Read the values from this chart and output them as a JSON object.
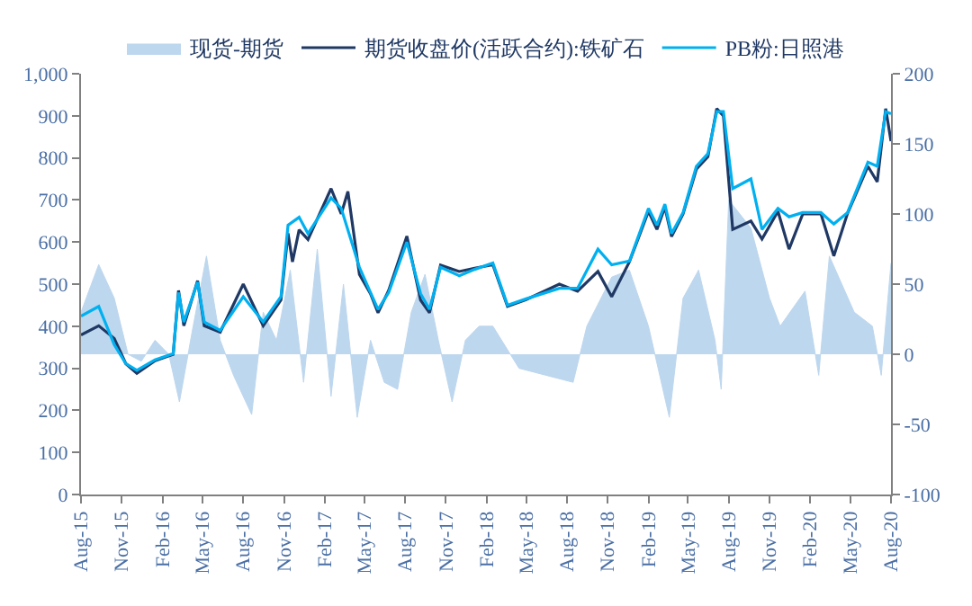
{
  "chart_data": {
    "type": "line",
    "legend": "top",
    "xlim": [
      "2015-08-01",
      "2020-08-01"
    ],
    "xticks": [
      {
        "value": "2015-08-01",
        "label": "Aug-15"
      },
      {
        "value": "2015-11-01",
        "label": "Nov-15"
      },
      {
        "value": "2016-02-01",
        "label": "Feb-16"
      },
      {
        "value": "2016-05-01",
        "label": "May-16"
      },
      {
        "value": "2016-08-01",
        "label": "Aug-16"
      },
      {
        "value": "2016-11-01",
        "label": "Nov-16"
      },
      {
        "value": "2017-02-01",
        "label": "Feb-17"
      },
      {
        "value": "2017-05-01",
        "label": "May-17"
      },
      {
        "value": "2017-08-01",
        "label": "Aug-17"
      },
      {
        "value": "2017-11-01",
        "label": "Nov-17"
      },
      {
        "value": "2018-02-01",
        "label": "Feb-18"
      },
      {
        "value": "2018-05-01",
        "label": "May-18"
      },
      {
        "value": "2018-08-01",
        "label": "Aug-18"
      },
      {
        "value": "2018-11-01",
        "label": "Nov-18"
      },
      {
        "value": "2019-02-01",
        "label": "Feb-19"
      },
      {
        "value": "2019-05-01",
        "label": "May-19"
      },
      {
        "value": "2019-08-01",
        "label": "Aug-19"
      },
      {
        "value": "2019-11-01",
        "label": "Nov-19"
      },
      {
        "value": "2020-02-01",
        "label": "Feb-20"
      },
      {
        "value": "2020-05-01",
        "label": "May-20"
      },
      {
        "value": "2020-08-01",
        "label": "Aug-20"
      }
    ],
    "ylim": [
      0,
      1000
    ],
    "yticks": [
      0,
      100,
      200,
      300,
      400,
      500,
      600,
      700,
      800,
      900,
      {
        "value": 1000,
        "label": "1,000"
      }
    ],
    "y2lim": [
      -100,
      200
    ],
    "y2ticks": [
      -100,
      -50,
      0,
      50,
      100,
      150,
      200
    ],
    "series": [
      {
        "name": "现货-期货",
        "type": "area",
        "axis": "y2",
        "color": "#bdd7ee",
        "x": [
          "2015-08-01",
          "2015-09-10",
          "2015-10-15",
          "2015-11-15",
          "2015-12-15",
          "2016-01-15",
          "2016-02-15",
          "2016-03-10",
          "2016-04-10",
          "2016-05-10",
          "2016-06-10",
          "2016-07-10",
          "2016-08-20",
          "2016-09-15",
          "2016-10-15",
          "2016-11-15",
          "2016-12-15",
          "2017-01-15",
          "2017-02-15",
          "2017-03-15",
          "2017-04-15",
          "2017-05-15",
          "2017-06-15",
          "2017-07-15",
          "2017-08-15",
          "2017-09-15",
          "2017-10-15",
          "2017-11-15",
          "2017-12-15",
          "2018-01-15",
          "2018-02-15",
          "2018-04-15",
          "2018-06-15",
          "2018-08-15",
          "2018-09-15",
          "2018-11-10",
          "2018-12-20",
          "2019-02-01",
          "2019-03-20",
          "2019-04-20",
          "2019-05-25",
          "2019-07-01",
          "2019-07-15",
          "2019-08-01",
          "2019-09-20",
          "2019-11-01",
          "2019-11-25",
          "2020-01-20",
          "2020-02-20",
          "2020-03-15",
          "2020-05-10",
          "2020-06-20",
          "2020-07-10",
          "2020-08-01"
        ],
        "values": [
          30,
          64,
          40,
          0,
          -5,
          10,
          0,
          -34,
          20,
          70,
          10,
          -15,
          -43,
          30,
          10,
          60,
          -20,
          75,
          -30,
          50,
          -45,
          10,
          -20,
          -25,
          30,
          57,
          10,
          -34,
          10,
          20,
          20,
          -10,
          -15,
          -20,
          20,
          55,
          60,
          20,
          -45,
          40,
          60,
          10,
          -25,
          110,
          90,
          40,
          20,
          45,
          -15,
          70,
          30,
          20,
          -15,
          65
        ]
      },
      {
        "name": "期货收盘价(活跃合约):铁矿石",
        "color": "#1f3864",
        "x": [
          "2015-08-01",
          "2015-09-10",
          "2015-10-15",
          "2015-11-10",
          "2015-12-05",
          "2016-01-15",
          "2016-02-25",
          "2016-03-08",
          "2016-03-20",
          "2016-04-20",
          "2016-05-05",
          "2016-06-10",
          "2016-08-01",
          "2016-09-15",
          "2016-10-25",
          "2016-11-10",
          "2016-11-20",
          "2016-12-05",
          "2016-12-25",
          "2017-02-15",
          "2017-03-10",
          "2017-03-25",
          "2017-04-20",
          "2017-05-15",
          "2017-06-01",
          "2017-06-25",
          "2017-08-05",
          "2017-09-05",
          "2017-09-25",
          "2017-10-20",
          "2017-12-01",
          "2018-01-05",
          "2018-02-15",
          "2018-03-20",
          "2018-05-01",
          "2018-07-15",
          "2018-08-25",
          "2018-10-10",
          "2018-11-10",
          "2018-12-20",
          "2019-02-01",
          "2019-02-20",
          "2019-03-10",
          "2019-03-25",
          "2019-04-20",
          "2019-05-20",
          "2019-06-15",
          "2019-07-05",
          "2019-07-20",
          "2019-08-10",
          "2019-09-20",
          "2019-10-15",
          "2019-11-20",
          "2019-12-15",
          "2020-01-15",
          "2020-02-25",
          "2020-03-25",
          "2020-04-25",
          "2020-06-10",
          "2020-07-01",
          "2020-07-20",
          "2020-08-01"
        ],
        "values": [
          379,
          401,
          371,
          311,
          288,
          318,
          333,
          485,
          401,
          508,
          401,
          386,
          500,
          401,
          462,
          621,
          553,
          629,
          606,
          727,
          667,
          720,
          523,
          477,
          432,
          485,
          614,
          462,
          432,
          545,
          530,
          538,
          546,
          447,
          463,
          500,
          483,
          530,
          470,
          553,
          673,
          630,
          683,
          613,
          667,
          773,
          803,
          917,
          900,
          630,
          650,
          607,
          673,
          583,
          667,
          667,
          567,
          668,
          780,
          743,
          917,
          840
        ]
      },
      {
        "name": "PB粉:日照港",
        "color": "#00b0f0",
        "x": [
          "2015-08-01",
          "2015-09-10",
          "2015-10-15",
          "2015-11-10",
          "2015-12-05",
          "2016-01-15",
          "2016-02-25",
          "2016-03-08",
          "2016-03-20",
          "2016-04-20",
          "2016-05-05",
          "2016-06-10",
          "2016-08-01",
          "2016-09-15",
          "2016-10-25",
          "2016-11-10",
          "2016-12-05",
          "2016-12-25",
          "2017-02-15",
          "2017-03-10",
          "2017-04-20",
          "2017-05-15",
          "2017-06-01",
          "2017-06-25",
          "2017-08-05",
          "2017-09-05",
          "2017-09-25",
          "2017-10-20",
          "2017-12-01",
          "2018-01-05",
          "2018-02-15",
          "2018-03-20",
          "2018-05-01",
          "2018-07-15",
          "2018-08-25",
          "2018-10-10",
          "2018-11-10",
          "2018-12-20",
          "2019-02-01",
          "2019-02-20",
          "2019-03-10",
          "2019-03-25",
          "2019-04-20",
          "2019-05-20",
          "2019-06-15",
          "2019-07-05",
          "2019-07-20",
          "2019-08-10",
          "2019-09-20",
          "2019-10-15",
          "2019-11-20",
          "2019-12-15",
          "2020-01-15",
          "2020-02-25",
          "2020-03-25",
          "2020-04-25",
          "2020-06-10",
          "2020-07-01",
          "2020-07-20",
          "2020-08-01"
        ],
        "values": [
          424,
          447,
          356,
          311,
          295,
          320,
          335,
          480,
          410,
          505,
          410,
          390,
          470,
          410,
          470,
          640,
          659,
          620,
          705,
          680,
          540,
          480,
          440,
          480,
          600,
          477,
          440,
          540,
          520,
          535,
          550,
          450,
          465,
          490,
          490,
          583,
          546,
          555,
          680,
          640,
          690,
          620,
          670,
          780,
          810,
          910,
          910,
          727,
          750,
          630,
          680,
          660,
          670,
          670,
          643,
          670,
          790,
          780,
          910,
          905
        ]
      }
    ]
  }
}
